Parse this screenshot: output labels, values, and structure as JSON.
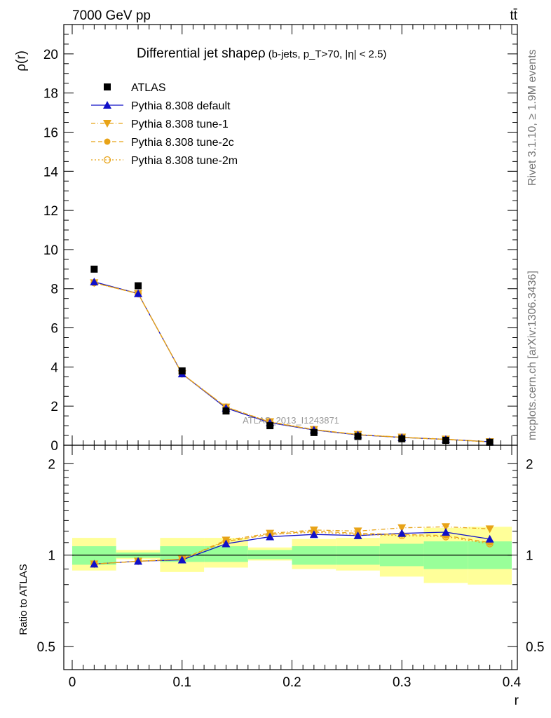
{
  "header": {
    "energy_label": "7000 GeV pp",
    "process_label": "tt̄"
  },
  "side_labels": {
    "rivet": "Rivet 3.1.10, ≥ 1.9M events",
    "mcplots": "mcplots.cern.ch [arXiv:1306.3436]"
  },
  "chart_data": [
    {
      "type": "scatter",
      "panel": "main",
      "title": "Differential jet shapeρ",
      "subtitle": "(b-jets, p_T>70, |η| < 2.5)",
      "ylabel": "ρ(r)",
      "xlabel": "r",
      "xlim": [
        0,
        0.4
      ],
      "ylim": [
        0,
        21.5
      ],
      "yticks": [
        0,
        2,
        4,
        6,
        8,
        10,
        12,
        14,
        16,
        18,
        20
      ],
      "watermark": "ATLAS_2013_I1243871",
      "legend_position": "top-left",
      "x": [
        0.02,
        0.06,
        0.1,
        0.14,
        0.18,
        0.22,
        0.26,
        0.3,
        0.34,
        0.38
      ],
      "series": [
        {
          "name": "ATLAS",
          "marker": "square",
          "color": "#000000",
          "values": [
            9.0,
            8.15,
            3.8,
            1.75,
            1.0,
            0.65,
            0.45,
            0.33,
            0.25,
            0.15
          ]
        },
        {
          "name": "Pythia 8.308 default",
          "marker": "triangle-up",
          "line": "solid",
          "color": "#1010c8",
          "values": [
            8.35,
            7.75,
            3.65,
            1.9,
            1.15,
            0.78,
            0.53,
            0.4,
            0.3,
            0.18
          ]
        },
        {
          "name": "Pythia 8.308 tune-1",
          "marker": "triangle-down",
          "line": "dashdot",
          "color": "#e8a317",
          "values": [
            8.3,
            7.75,
            3.65,
            1.95,
            1.2,
            0.8,
            0.55,
            0.41,
            0.31,
            0.18
          ]
        },
        {
          "name": "Pythia 8.308 tune-2c",
          "marker": "circle",
          "line": "dashed",
          "color": "#e8a317",
          "values": [
            8.3,
            7.75,
            3.65,
            1.95,
            1.18,
            0.8,
            0.54,
            0.4,
            0.3,
            0.17
          ]
        },
        {
          "name": "Pythia 8.308 tune-2m",
          "marker": "circle-open",
          "line": "dotted",
          "color": "#e8a317",
          "values": [
            8.3,
            7.75,
            3.65,
            1.95,
            1.18,
            0.79,
            0.54,
            0.4,
            0.29,
            0.17
          ]
        }
      ]
    },
    {
      "type": "line",
      "panel": "ratio",
      "ylabel": "Ratio to ATLAS",
      "xlabel": "r",
      "xlim": [
        0,
        0.4
      ],
      "ylim": [
        0.42,
        2.3
      ],
      "log_y": true,
      "yticks": [
        0.5,
        1,
        2
      ],
      "bins": [
        0,
        0.04,
        0.08,
        0.12,
        0.16,
        0.2,
        0.24,
        0.28,
        0.32,
        0.36,
        0.4
      ],
      "bands": {
        "stat_low": [
          0.93,
          0.98,
          0.95,
          0.95,
          0.97,
          0.93,
          0.93,
          0.92,
          0.9,
          0.9
        ],
        "stat_high": [
          1.07,
          1.02,
          1.07,
          1.07,
          1.04,
          1.07,
          1.07,
          1.09,
          1.11,
          1.11
        ],
        "total_low": [
          0.89,
          0.97,
          0.88,
          0.91,
          0.96,
          0.9,
          0.89,
          0.85,
          0.81,
          0.8
        ],
        "total_high": [
          1.14,
          1.04,
          1.14,
          1.14,
          1.06,
          1.13,
          1.14,
          1.17,
          1.23,
          1.24
        ]
      },
      "x": [
        0.02,
        0.06,
        0.1,
        0.14,
        0.18,
        0.22,
        0.26,
        0.3,
        0.34,
        0.38
      ],
      "series": [
        {
          "name": "Pythia 8.308 default",
          "color": "#1010c8",
          "values": [
            0.935,
            0.955,
            0.965,
            1.09,
            1.15,
            1.17,
            1.16,
            1.18,
            1.19,
            1.13
          ]
        },
        {
          "name": "Pythia 8.308 tune-1",
          "color": "#e8a317",
          "values": [
            0.935,
            0.955,
            0.97,
            1.12,
            1.18,
            1.21,
            1.2,
            1.23,
            1.24,
            1.22
          ]
        },
        {
          "name": "Pythia 8.308 tune-2c",
          "color": "#e8a317",
          "values": [
            0.935,
            0.955,
            0.97,
            1.11,
            1.17,
            1.2,
            1.18,
            1.17,
            1.16,
            1.1
          ]
        },
        {
          "name": "Pythia 8.308 tune-2m",
          "color": "#e8a317",
          "values": [
            0.935,
            0.955,
            0.97,
            1.11,
            1.17,
            1.19,
            1.17,
            1.16,
            1.15,
            1.09
          ]
        }
      ],
      "xticks": [
        0,
        0.1,
        0.2,
        0.3,
        0.4
      ],
      "xtick_labels": [
        "0",
        "0.1",
        "0.2",
        "0.3",
        "0.4"
      ]
    }
  ]
}
